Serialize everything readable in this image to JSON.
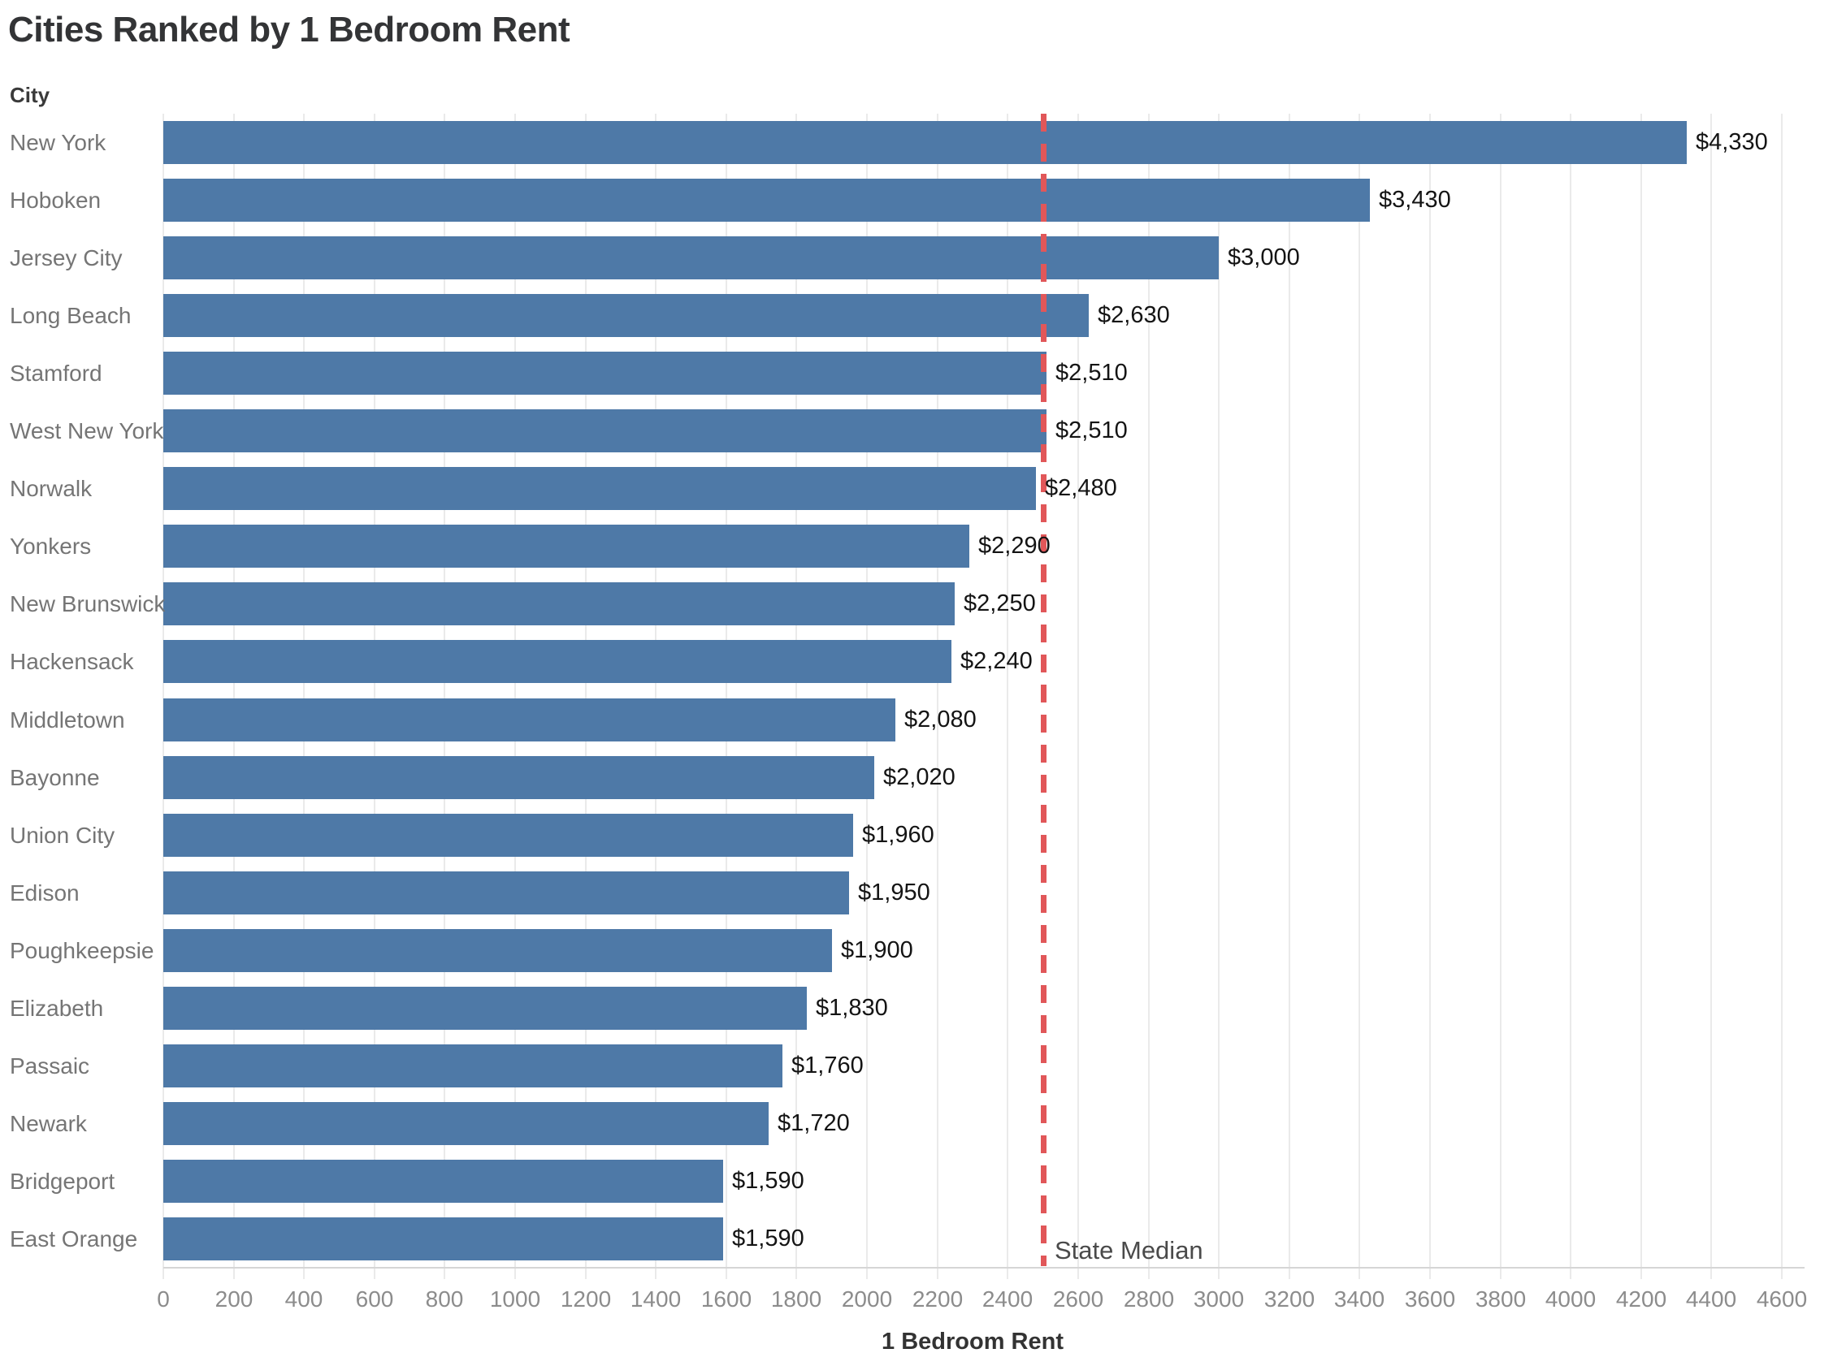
{
  "chart_data": {
    "type": "bar",
    "orientation": "horizontal",
    "title": "Cities Ranked by 1 Bedroom Rent",
    "xlabel": "1 Bedroom Rent",
    "ylabel": "City",
    "xlim": [
      0,
      4600
    ],
    "tick_step": 200,
    "grid": true,
    "legend": "none",
    "categories": [
      "New York",
      "Hoboken",
      "Jersey City",
      "Long Beach",
      "Stamford",
      "West New York",
      "Norwalk",
      "Yonkers",
      "New Brunswick",
      "Hackensack",
      "Middletown",
      "Bayonne",
      "Union City",
      "Edison",
      "Poughkeepsie",
      "Elizabeth",
      "Passaic",
      "Newark",
      "Bridgeport",
      "East Orange"
    ],
    "values": [
      4330,
      3430,
      3000,
      2630,
      2510,
      2510,
      2480,
      2290,
      2250,
      2240,
      2080,
      2020,
      1960,
      1950,
      1900,
      1830,
      1760,
      1720,
      1590,
      1590
    ],
    "value_labels": [
      "$4,330",
      "$3,430",
      "$3,000",
      "$2,630",
      "$2,510",
      "$2,510",
      "$2,480",
      "$2,290",
      "$2,250",
      "$2,240",
      "$2,080",
      "$2,020",
      "$1,960",
      "$1,950",
      "$1,900",
      "$1,830",
      "$1,760",
      "$1,720",
      "$1,590",
      "$1,590"
    ],
    "reference_line": {
      "value": 2500,
      "label": "State Median"
    }
  },
  "colors": {
    "bar": "#4e79a7",
    "reference_line": "#e15759",
    "gridline": "#eaeaea",
    "axis_line": "#d6d6d6",
    "title_text": "#333436",
    "category_label": "#757575",
    "tick_label": "#8c8c8c",
    "value_label": "#141414",
    "axis_title_text": "#333333",
    "reference_label_text": "#4a4a4a",
    "background": "#ffffff"
  }
}
